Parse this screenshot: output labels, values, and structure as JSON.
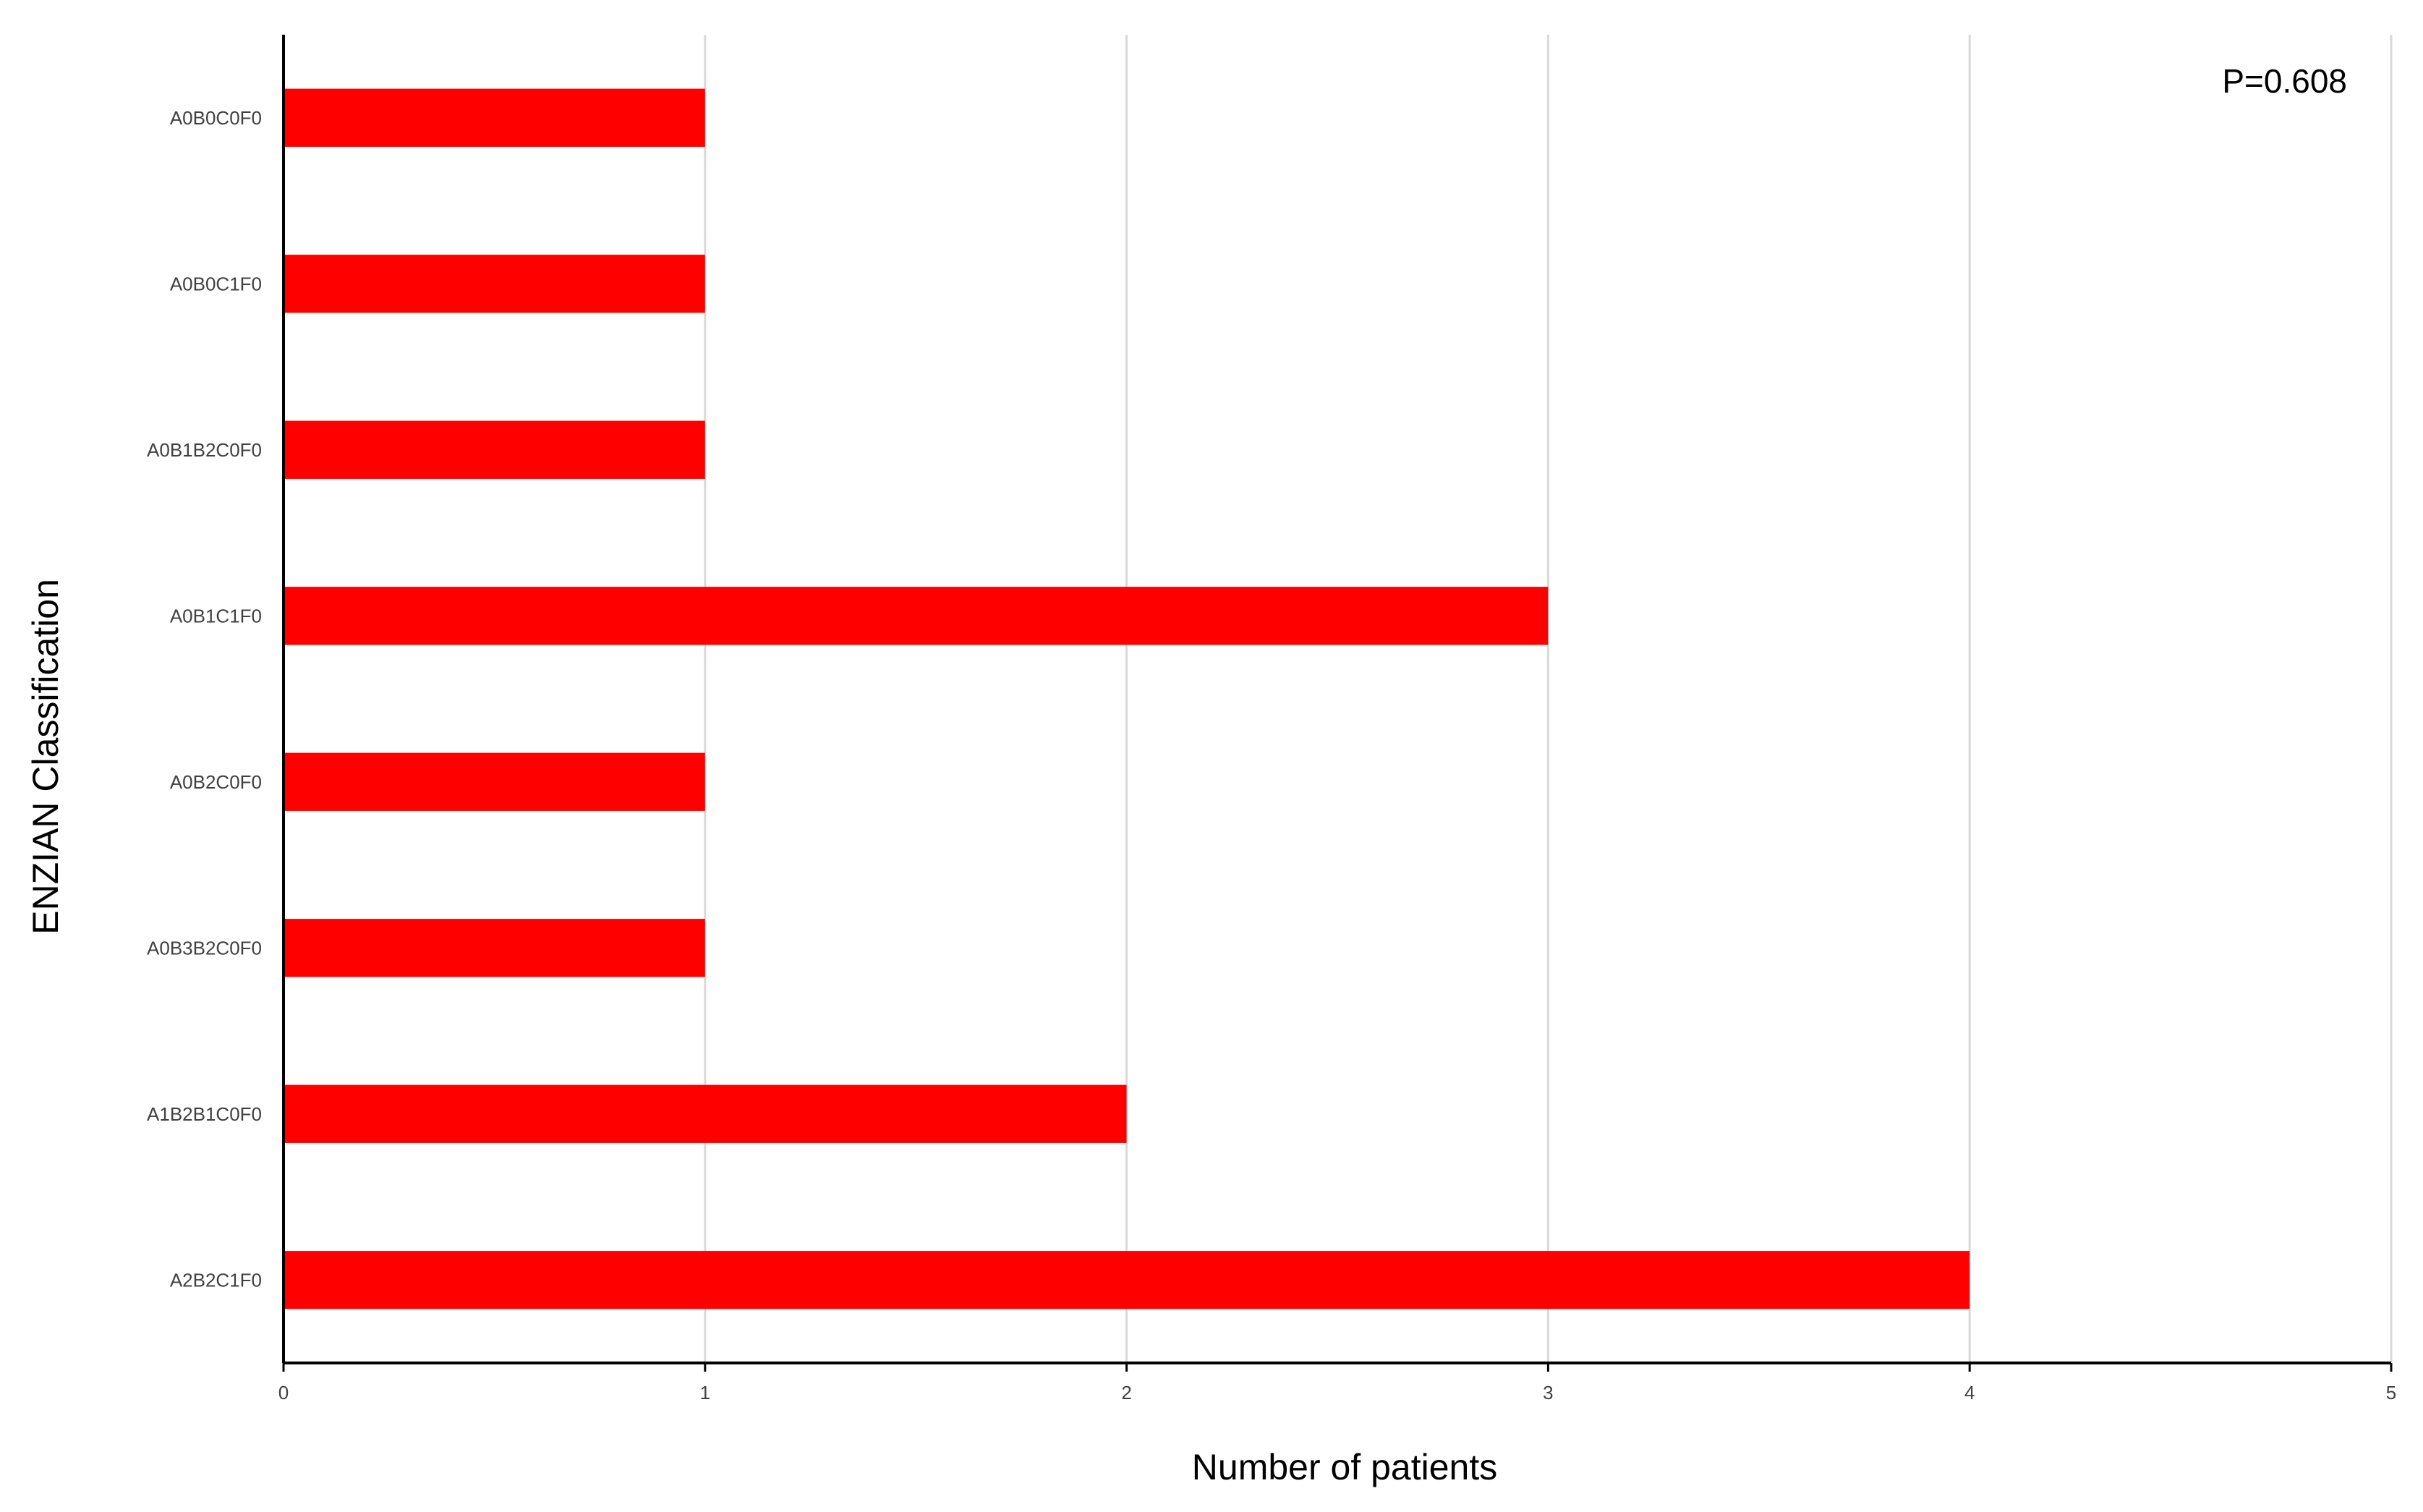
{
  "chart_data": {
    "type": "bar",
    "orientation": "horizontal",
    "categories": [
      "A0B0C0F0",
      "A0B0C1F0",
      "A0B1B2C0F0",
      "A0B1C1F0",
      "A0B2C0F0",
      "A0B3B2C0F0",
      "A1B2B1C0F0",
      "A2B2C1F0"
    ],
    "values": [
      1,
      1,
      1,
      3,
      1,
      1,
      2,
      4
    ],
    "xlabel": "Number of patients",
    "ylabel": "ENZIAN Classification",
    "xlim": [
      0,
      5
    ],
    "xticks": [
      "0",
      "1",
      "2",
      "3",
      "4",
      "5"
    ],
    "annotation": "P=0.608",
    "grid": "vertical",
    "colors": {
      "bar": "#ff0000",
      "grid": "#d9d9d9",
      "axis": "#000000"
    }
  }
}
